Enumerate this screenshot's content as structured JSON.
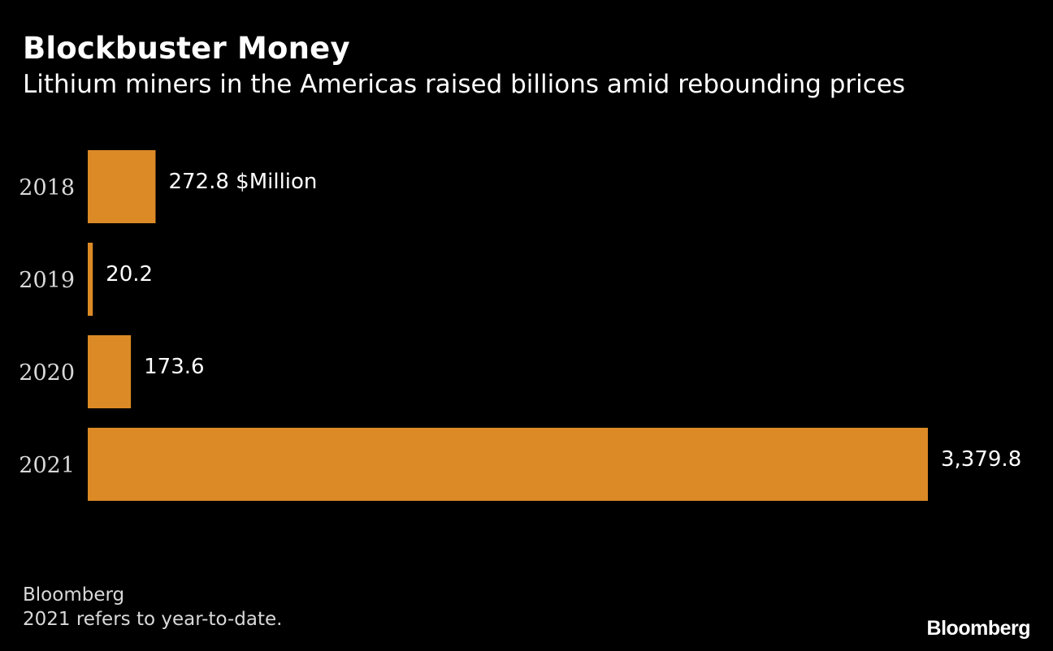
{
  "title": "Blockbuster Money",
  "subtitle": "Lithium miners in the Americas raised billions amid rebounding prices",
  "source": "Bloomberg",
  "note": "2021 refers to year-to-date.",
  "logo": "Bloomberg",
  "colors": {
    "background": "#000000",
    "bar": "#dc8a26",
    "text": "#ffffff",
    "muted_text": "#d9d9d9"
  },
  "chart_data": {
    "type": "bar",
    "orientation": "horizontal",
    "title": "Blockbuster Money",
    "subtitle": "Lithium miners in the Americas raised billions amid rebounding prices",
    "categories": [
      "2018",
      "2019",
      "2020",
      "2021"
    ],
    "values": [
      272.8,
      20.2,
      173.6,
      3379.8
    ],
    "data_labels": [
      "272.8 $Million",
      "20.2",
      "173.6",
      "3,379.8"
    ],
    "unit": "$Million",
    "xlabel": "",
    "ylabel": "",
    "xlim": [
      0,
      3379.8
    ],
    "grid": false,
    "legend": "none"
  }
}
